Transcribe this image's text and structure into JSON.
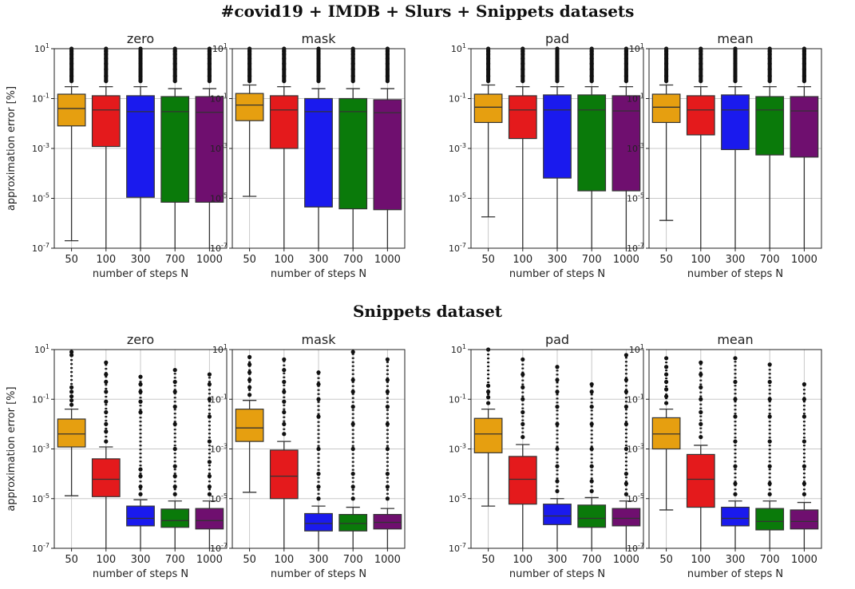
{
  "sections": [
    {
      "title": "#covid19 + IMDB + Slurs + Snippets datasets"
    },
    {
      "title": "Snippets dataset"
    }
  ],
  "chart_data": [
    {
      "type": "box",
      "section": 0,
      "title": "zero",
      "categories": [
        "50",
        "100",
        "300",
        "700",
        "1000"
      ],
      "xlabel": "number of steps N",
      "ylabel": "approximation error [%]",
      "yscale": "log",
      "ylim": [
        1e-07,
        10
      ],
      "yticks": [
        "10^1",
        "10^-1",
        "10^-3",
        "10^-5",
        "10^-7"
      ],
      "boxes": [
        {
          "q1": 0.008,
          "median": 0.04,
          "q3": 0.15,
          "whisker_low": 2e-07,
          "whisker_high": 0.3,
          "outliers_high": [
            0.5,
            0.8,
            1.5,
            2.5,
            4,
            6,
            8,
            10
          ],
          "outliers_low": []
        },
        {
          "q1": 0.0012,
          "median": 0.035,
          "q3": 0.13,
          "whisker_low": 1e-07,
          "whisker_high": 0.3,
          "outliers_high": [
            0.5,
            0.8,
            1.5,
            2.5,
            4,
            6,
            8,
            10
          ],
          "outliers_low": []
        },
        {
          "q1": 1.1e-05,
          "median": 0.03,
          "q3": 0.13,
          "whisker_low": 1e-07,
          "whisker_high": 0.3,
          "outliers_high": [
            0.5,
            0.8,
            1.5,
            2.5,
            4,
            6,
            8,
            10
          ],
          "outliers_low": []
        },
        {
          "q1": 7e-06,
          "median": 0.03,
          "q3": 0.12,
          "whisker_low": 1e-07,
          "whisker_high": 0.25,
          "outliers_high": [
            0.5,
            0.8,
            1.5,
            2.5,
            4,
            6,
            8,
            10
          ],
          "outliers_low": []
        },
        {
          "q1": 7e-06,
          "median": 0.028,
          "q3": 0.12,
          "whisker_low": 1e-07,
          "whisker_high": 0.25,
          "outliers_high": [
            0.5,
            0.8,
            1.5,
            2.5,
            4,
            6,
            8,
            10
          ],
          "outliers_low": []
        }
      ]
    },
    {
      "type": "box",
      "section": 0,
      "title": "mask",
      "categories": [
        "50",
        "100",
        "300",
        "700",
        "1000"
      ],
      "xlabel": "number of steps N",
      "ylabel": "",
      "yscale": "log",
      "ylim": [
        1e-07,
        10
      ],
      "yticks": [
        "10^1",
        "10^-1",
        "10^-3",
        "10^-5",
        "10^-7"
      ],
      "boxes": [
        {
          "q1": 0.013,
          "median": 0.055,
          "q3": 0.16,
          "whisker_low": 1.2e-05,
          "whisker_high": 0.35,
          "outliers_high": [
            0.5,
            0.8,
            1.5,
            2.5,
            4,
            6,
            8,
            10
          ],
          "outliers_low": []
        },
        {
          "q1": 0.001,
          "median": 0.035,
          "q3": 0.13,
          "whisker_low": 1e-07,
          "whisker_high": 0.3,
          "outliers_high": [
            0.5,
            0.8,
            1.5,
            2.5,
            4,
            6,
            8,
            10
          ],
          "outliers_low": []
        },
        {
          "q1": 4.5e-06,
          "median": 0.03,
          "q3": 0.1,
          "whisker_low": 1e-07,
          "whisker_high": 0.25,
          "outliers_high": [
            0.5,
            0.8,
            1.5,
            2.5,
            4,
            6,
            8,
            10
          ],
          "outliers_low": []
        },
        {
          "q1": 3.8e-06,
          "median": 0.03,
          "q3": 0.1,
          "whisker_low": 1e-07,
          "whisker_high": 0.25,
          "outliers_high": [
            0.5,
            0.8,
            1.5,
            2.5,
            4,
            6,
            8,
            10
          ],
          "outliers_low": []
        },
        {
          "q1": 3.5e-06,
          "median": 0.027,
          "q3": 0.09,
          "whisker_low": 1e-07,
          "whisker_high": 0.25,
          "outliers_high": [
            0.5,
            0.8,
            1.5,
            2.5,
            4,
            6,
            8,
            10
          ],
          "outliers_low": []
        }
      ]
    },
    {
      "type": "box",
      "section": 0,
      "title": "pad",
      "categories": [
        "50",
        "100",
        "300",
        "700",
        "1000"
      ],
      "xlabel": "number of steps N",
      "ylabel": "",
      "yscale": "log",
      "ylim": [
        1e-07,
        10
      ],
      "yticks": [
        "10^1",
        "10^-1",
        "10^-3",
        "10^-5",
        "10^-7"
      ],
      "boxes": [
        {
          "q1": 0.011,
          "median": 0.045,
          "q3": 0.15,
          "whisker_low": 1.8e-06,
          "whisker_high": 0.35,
          "outliers_high": [
            0.5,
            0.8,
            1.5,
            2.5,
            4,
            6,
            8,
            10
          ],
          "outliers_low": []
        },
        {
          "q1": 0.0025,
          "median": 0.035,
          "q3": 0.13,
          "whisker_low": 1e-07,
          "whisker_high": 0.3,
          "outliers_high": [
            0.5,
            0.8,
            1.5,
            2.5,
            4,
            6,
            8,
            10
          ],
          "outliers_low": []
        },
        {
          "q1": 6.5e-05,
          "median": 0.035,
          "q3": 0.14,
          "whisker_low": 1e-07,
          "whisker_high": 0.3,
          "outliers_high": [
            0.5,
            0.8,
            1.5,
            2.5,
            4,
            6,
            8,
            10
          ],
          "outliers_low": []
        },
        {
          "q1": 2e-05,
          "median": 0.035,
          "q3": 0.14,
          "whisker_low": 1e-07,
          "whisker_high": 0.3,
          "outliers_high": [
            0.5,
            0.8,
            1.5,
            2.5,
            4,
            6,
            8,
            10
          ],
          "outliers_low": []
        },
        {
          "q1": 2e-05,
          "median": 0.032,
          "q3": 0.13,
          "whisker_low": 1e-07,
          "whisker_high": 0.3,
          "outliers_high": [
            0.5,
            0.8,
            1.5,
            2.5,
            4,
            6,
            8,
            10
          ],
          "outliers_low": []
        }
      ]
    },
    {
      "type": "box",
      "section": 0,
      "title": "mean",
      "categories": [
        "50",
        "100",
        "300",
        "700",
        "1000"
      ],
      "xlabel": "number of steps N",
      "ylabel": "",
      "yscale": "log",
      "ylim": [
        1e-07,
        10
      ],
      "yticks": [
        "10^1",
        "10^-1",
        "10^-3",
        "10^-5",
        "10^-7"
      ],
      "boxes": [
        {
          "q1": 0.011,
          "median": 0.045,
          "q3": 0.15,
          "whisker_low": 1.3e-06,
          "whisker_high": 0.35,
          "outliers_high": [
            0.5,
            0.8,
            1.5,
            2.5,
            4,
            6,
            8,
            10
          ],
          "outliers_low": []
        },
        {
          "q1": 0.0035,
          "median": 0.035,
          "q3": 0.13,
          "whisker_low": 1e-07,
          "whisker_high": 0.3,
          "outliers_high": [
            0.5,
            0.8,
            1.5,
            2.5,
            4,
            6,
            8,
            10
          ],
          "outliers_low": []
        },
        {
          "q1": 0.0009,
          "median": 0.035,
          "q3": 0.14,
          "whisker_low": 1e-07,
          "whisker_high": 0.3,
          "outliers_high": [
            0.5,
            0.8,
            1.5,
            2.5,
            4,
            6,
            8,
            10
          ],
          "outliers_low": []
        },
        {
          "q1": 0.00055,
          "median": 0.035,
          "q3": 0.12,
          "whisker_low": 1e-07,
          "whisker_high": 0.3,
          "outliers_high": [
            0.5,
            0.8,
            1.5,
            2.5,
            4,
            6,
            8,
            10
          ],
          "outliers_low": []
        },
        {
          "q1": 0.00045,
          "median": 0.032,
          "q3": 0.12,
          "whisker_low": 1e-07,
          "whisker_high": 0.3,
          "outliers_high": [
            0.5,
            0.8,
            1.5,
            2.5,
            4,
            6,
            8,
            10
          ],
          "outliers_low": []
        }
      ]
    },
    {
      "type": "box",
      "section": 1,
      "title": "zero",
      "categories": [
        "50",
        "100",
        "300",
        "700",
        "1000"
      ],
      "xlabel": "number of steps N",
      "ylabel": "approximation error [%]",
      "yscale": "log",
      "ylim": [
        1e-07,
        10
      ],
      "yticks": [
        "10^1",
        "10^-1",
        "10^-3",
        "10^-5",
        "10^-7"
      ],
      "boxes": [
        {
          "q1": 0.0012,
          "median": 0.004,
          "q3": 0.016,
          "whisker_low": 1.3e-05,
          "whisker_high": 0.04,
          "outliers_high": [
            0.06,
            0.09,
            0.13,
            0.2,
            0.3,
            6,
            8
          ],
          "outliers_low": []
        },
        {
          "q1": 1.2e-05,
          "median": 6e-05,
          "q3": 0.0004,
          "whisker_low": 1e-07,
          "whisker_high": 0.0012,
          "outliers_high": [
            0.002,
            0.005,
            0.01,
            0.03,
            0.08,
            0.2,
            0.5,
            1,
            3
          ],
          "outliers_low": []
        },
        {
          "q1": 8e-07,
          "median": 1.6e-06,
          "q3": 5e-06,
          "whisker_low": 1e-07,
          "whisker_high": 9e-06,
          "outliers_high": [
            1.5e-05,
            3e-05,
            8e-05,
            0.00015,
            0.03,
            0.08,
            0.2,
            0.4,
            0.8
          ],
          "outliers_low": []
        },
        {
          "q1": 7e-07,
          "median": 1.3e-06,
          "q3": 3.8e-06,
          "whisker_low": 1e-07,
          "whisker_high": 8e-06,
          "outliers_high": [
            1.5e-05,
            3e-05,
            8e-05,
            0.0002,
            0.001,
            0.01,
            0.05,
            0.2,
            0.5,
            1.5
          ],
          "outliers_low": []
        },
        {
          "q1": 6e-07,
          "median": 1.3e-06,
          "q3": 4e-06,
          "whisker_low": 1e-07,
          "whisker_high": 8e-06,
          "outliers_high": [
            1.5e-05,
            3e-05,
            8e-05,
            0.0003,
            0.002,
            0.02,
            0.1,
            0.4,
            1
          ],
          "outliers_low": []
        }
      ]
    },
    {
      "type": "box",
      "section": 1,
      "title": "mask",
      "categories": [
        "50",
        "100",
        "300",
        "700",
        "1000"
      ],
      "xlabel": "number of steps N",
      "ylabel": "",
      "yscale": "log",
      "ylim": [
        1e-07,
        10
      ],
      "yticks": [
        "10^1",
        "10^-1",
        "10^-3",
        "10^-5",
        "10^-7"
      ],
      "boxes": [
        {
          "q1": 0.002,
          "median": 0.007,
          "q3": 0.04,
          "whisker_low": 1.8e-05,
          "whisker_high": 0.09,
          "outliers_high": [
            0.15,
            0.3,
            0.6,
            1.2,
            2.5,
            5
          ],
          "outliers_low": []
        },
        {
          "q1": 1e-05,
          "median": 8e-05,
          "q3": 0.0009,
          "whisker_low": 1e-07,
          "whisker_high": 0.002,
          "outliers_high": [
            0.004,
            0.01,
            0.03,
            0.08,
            0.2,
            0.5,
            1.5,
            4
          ],
          "outliers_low": []
        },
        {
          "q1": 5e-07,
          "median": 1e-06,
          "q3": 2.5e-06,
          "whisker_low": 1e-07,
          "whisker_high": 5e-06,
          "outliers_high": [
            1e-05,
            3e-05,
            0.0001,
            0.001,
            0.02,
            0.1,
            0.4,
            1.2
          ],
          "outliers_low": []
        },
        {
          "q1": 5e-07,
          "median": 1e-06,
          "q3": 2.3e-06,
          "whisker_low": 1e-07,
          "whisker_high": 4.5e-06,
          "outliers_high": [
            1e-05,
            3e-05,
            0.0001,
            0.001,
            0.01,
            0.05,
            0.2,
            0.6,
            8
          ],
          "outliers_low": []
        },
        {
          "q1": 6e-07,
          "median": 1.1e-06,
          "q3": 2.3e-06,
          "whisker_low": 1e-07,
          "whisker_high": 4e-06,
          "outliers_high": [
            1e-05,
            3e-05,
            0.0001,
            0.001,
            0.01,
            0.05,
            0.2,
            0.6,
            4
          ],
          "outliers_low": []
        }
      ]
    },
    {
      "type": "box",
      "section": 1,
      "title": "pad",
      "categories": [
        "50",
        "100",
        "300",
        "700",
        "1000"
      ],
      "xlabel": "number of steps N",
      "ylabel": "",
      "yscale": "log",
      "ylim": [
        1e-07,
        10
      ],
      "yticks": [
        "10^1",
        "10^-1",
        "10^-3",
        "10^-5",
        "10^-7"
      ],
      "boxes": [
        {
          "q1": 0.0007,
          "median": 0.004,
          "q3": 0.017,
          "whisker_low": 5e-06,
          "whisker_high": 0.04,
          "outliers_high": [
            0.07,
            0.12,
            0.2,
            0.35,
            10
          ],
          "outliers_low": []
        },
        {
          "q1": 6e-06,
          "median": 6e-05,
          "q3": 0.0005,
          "whisker_low": 1e-07,
          "whisker_high": 0.0015,
          "outliers_high": [
            0.003,
            0.01,
            0.03,
            0.1,
            0.3,
            1,
            4
          ],
          "outliers_low": []
        },
        {
          "q1": 9e-07,
          "median": 2e-06,
          "q3": 6e-06,
          "whisker_low": 1e-07,
          "whisker_high": 1e-05,
          "outliers_high": [
            2e-05,
            5e-05,
            0.0002,
            0.001,
            0.01,
            0.05,
            0.2,
            0.6,
            2
          ],
          "outliers_low": []
        },
        {
          "q1": 7e-07,
          "median": 1.6e-06,
          "q3": 5.5e-06,
          "whisker_low": 1e-07,
          "whisker_high": 1.1e-05,
          "outliers_high": [
            2e-05,
            5e-05,
            0.0002,
            0.001,
            0.01,
            0.05,
            0.2,
            0.4
          ],
          "outliers_low": []
        },
        {
          "q1": 8e-07,
          "median": 1.6e-06,
          "q3": 4e-06,
          "whisker_low": 1e-07,
          "whisker_high": 8e-06,
          "outliers_high": [
            1.5e-05,
            4e-05,
            0.0001,
            0.001,
            0.01,
            0.05,
            0.2,
            0.6,
            6
          ],
          "outliers_low": []
        }
      ]
    },
    {
      "type": "box",
      "section": 1,
      "title": "mean",
      "categories": [
        "50",
        "100",
        "300",
        "700",
        "1000"
      ],
      "xlabel": "number of steps N",
      "ylabel": "",
      "yscale": "log",
      "ylim": [
        1e-07,
        10
      ],
      "yticks": [
        "10^1",
        "10^-1",
        "10^-3",
        "10^-5",
        "10^-7"
      ],
      "boxes": [
        {
          "q1": 0.001,
          "median": 0.004,
          "q3": 0.018,
          "whisker_low": 3.5e-06,
          "whisker_high": 0.04,
          "outliers_high": [
            0.07,
            0.13,
            0.25,
            0.5,
            1,
            2,
            4.5
          ],
          "outliers_low": []
        },
        {
          "q1": 4.5e-06,
          "median": 6e-05,
          "q3": 0.0006,
          "whisker_low": 1e-07,
          "whisker_high": 0.0014,
          "outliers_high": [
            0.003,
            0.01,
            0.03,
            0.1,
            0.3,
            1,
            3
          ],
          "outliers_low": []
        },
        {
          "q1": 8e-07,
          "median": 1.6e-06,
          "q3": 4.5e-06,
          "whisker_low": 1e-07,
          "whisker_high": 8e-06,
          "outliers_high": [
            1.5e-05,
            4e-05,
            0.0002,
            0.002,
            0.02,
            0.1,
            0.5,
            4.5
          ],
          "outliers_low": []
        },
        {
          "q1": 5.5e-07,
          "median": 1.2e-06,
          "q3": 4e-06,
          "whisker_low": 1e-07,
          "whisker_high": 8e-06,
          "outliers_high": [
            1.5e-05,
            4e-05,
            0.0002,
            0.002,
            0.02,
            0.1,
            0.5,
            2.5
          ],
          "outliers_low": []
        },
        {
          "q1": 6e-07,
          "median": 1.2e-06,
          "q3": 3.5e-06,
          "whisker_low": 1e-07,
          "whisker_high": 7e-06,
          "outliers_high": [
            1.5e-05,
            4e-05,
            0.0002,
            0.002,
            0.02,
            0.1,
            0.4
          ],
          "outliers_low": []
        }
      ]
    }
  ],
  "colors": [
    "#e69f10",
    "#e41a1c",
    "#1a1aee",
    "#0a7a0a",
    "#6f0f6f"
  ]
}
